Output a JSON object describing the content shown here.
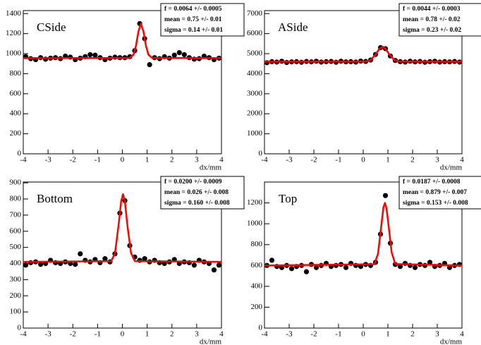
{
  "chart_data": [
    {
      "type": "scatter",
      "title": "CSide",
      "xlabel": "dx/mm",
      "color": "#000000",
      "fit_color": "#ff0000",
      "xlim": [
        -4,
        4
      ],
      "ylim": [
        0,
        1430
      ],
      "xticks": [
        -4,
        -3,
        -2,
        -1,
        0,
        1,
        2,
        3,
        4
      ],
      "yticks": [
        0,
        200,
        400,
        600,
        800,
        1000,
        1200,
        1400
      ],
      "stats": [
        "f =  0.0064 +/- 0.0005",
        "mean =  0.75 +/- 0.01",
        "sigma =  0.14 +/- 0.01"
      ],
      "x": [
        -3.9,
        -3.7,
        -3.5,
        -3.3,
        -3.1,
        -2.9,
        -2.7,
        -2.5,
        -2.3,
        -2.1,
        -1.9,
        -1.7,
        -1.5,
        -1.3,
        -1.1,
        -0.9,
        -0.7,
        -0.5,
        -0.3,
        -0.1,
        0.1,
        0.3,
        0.5,
        0.7,
        0.9,
        1.1,
        1.3,
        1.5,
        1.7,
        1.9,
        2.1,
        2.3,
        2.5,
        2.7,
        2.9,
        3.1,
        3.3,
        3.5,
        3.7,
        3.9
      ],
      "values": [
        970,
        950,
        940,
        960,
        945,
        955,
        960,
        950,
        975,
        965,
        940,
        955,
        970,
        990,
        985,
        960,
        940,
        955,
        965,
        960,
        960,
        970,
        1030,
        1300,
        1150,
        890,
        960,
        950,
        970,
        955,
        985,
        1010,
        990,
        960,
        945,
        950,
        975,
        960,
        940,
        955
      ],
      "fit": {
        "x": [
          -4,
          0.3,
          0.45,
          0.55,
          0.65,
          0.75,
          0.85,
          0.95,
          1.05,
          1.2,
          4
        ],
        "values": [
          955,
          957,
          990,
          1079,
          1222,
          1300,
          1222,
          1079,
          990,
          957,
          955
        ]
      }
    },
    {
      "type": "scatter",
      "title": "ASide",
      "xlabel": "dx/mm",
      "color": "#000000",
      "fit_color": "#ff0000",
      "xlim": [
        -4,
        4
      ],
      "ylim": [
        0,
        7150
      ],
      "xticks": [
        -4,
        -3,
        -2,
        -1,
        0,
        1,
        2,
        3,
        4
      ],
      "yticks": [
        0,
        1000,
        2000,
        3000,
        4000,
        5000,
        6000,
        7000
      ],
      "stats": [
        "f =  0.0044 +/- 0.0003",
        "mean =  0.78 +/- 0.02",
        "sigma =  0.23 +/- 0.02"
      ],
      "x": [
        -3.9,
        -3.7,
        -3.5,
        -3.3,
        -3.1,
        -2.9,
        -2.7,
        -2.5,
        -2.3,
        -2.1,
        -1.9,
        -1.7,
        -1.5,
        -1.3,
        -1.1,
        -0.9,
        -0.7,
        -0.5,
        -0.3,
        -0.1,
        0.1,
        0.3,
        0.5,
        0.7,
        0.9,
        1.1,
        1.3,
        1.5,
        1.7,
        1.9,
        2.1,
        2.3,
        2.5,
        2.7,
        2.9,
        3.1,
        3.3,
        3.5,
        3.7,
        3.9
      ],
      "values": [
        4550,
        4600,
        4580,
        4620,
        4560,
        4590,
        4600,
        4570,
        4610,
        4590,
        4620,
        4580,
        4600,
        4610,
        4570,
        4620,
        4590,
        4600,
        4580,
        4630,
        4610,
        4680,
        4960,
        5300,
        5250,
        4885,
        4660,
        4600,
        4580,
        4620,
        4590,
        4610,
        4570,
        4600,
        4620,
        4580,
        4600,
        4590,
        4610,
        4580
      ],
      "fit": {
        "x": [
          -4,
          0.1,
          0.3,
          0.5,
          0.65,
          0.78,
          0.9,
          1.05,
          1.25,
          1.45,
          4
        ],
        "values": [
          4600,
          4610,
          4680,
          4960,
          5240,
          5350,
          5250,
          4975,
          4690,
          4610,
          4600
        ]
      }
    },
    {
      "type": "scatter",
      "title": "Bottom",
      "xlabel": "dx/mm",
      "color": "#000000",
      "fit_color": "#ff0000",
      "xlim": [
        -4,
        4
      ],
      "ylim": [
        0,
        905
      ],
      "xticks": [
        -4,
        -3,
        -2,
        -1,
        0,
        1,
        2,
        3,
        4
      ],
      "yticks": [
        0,
        100,
        200,
        300,
        400,
        500,
        600,
        700,
        800,
        900
      ],
      "stats": [
        "f =  0.0200 +/- 0.0009",
        "mean =  0.026 +/- 0.008",
        "sigma =  0.160 +/- 0.008"
      ],
      "x": [
        -3.9,
        -3.7,
        -3.5,
        -3.3,
        -3.1,
        -2.9,
        -2.7,
        -2.5,
        -2.3,
        -2.1,
        -1.9,
        -1.7,
        -1.5,
        -1.3,
        -1.1,
        -0.9,
        -0.7,
        -0.5,
        -0.3,
        -0.1,
        0.1,
        0.3,
        0.5,
        0.7,
        0.9,
        1.1,
        1.3,
        1.5,
        1.7,
        1.9,
        2.1,
        2.3,
        2.5,
        2.7,
        2.9,
        3.1,
        3.3,
        3.5,
        3.7,
        3.9
      ],
      "values": [
        390,
        405,
        410,
        395,
        400,
        420,
        405,
        400,
        410,
        400,
        395,
        460,
        420,
        410,
        425,
        405,
        430,
        410,
        460,
        712,
        790,
        511,
        440,
        420,
        430,
        410,
        420,
        405,
        400,
        410,
        425,
        400,
        410,
        405,
        390,
        420,
        410,
        400,
        360,
        390
      ],
      "fit": {
        "x": [
          -4,
          -0.45,
          -0.3,
          -0.15,
          -0.05,
          0.026,
          0.1,
          0.2,
          0.35,
          0.5,
          4
        ],
        "values": [
          410,
          415,
          463,
          641,
          784,
          830,
          788,
          641,
          464,
          415,
          410
        ]
      }
    },
    {
      "type": "scatter",
      "title": "Top",
      "xlabel": "dx/mm",
      "color": "#000000",
      "fit_color": "#ff0000",
      "xlim": [
        -4,
        4
      ],
      "ylim": [
        0,
        1400
      ],
      "xticks": [
        -4,
        -3,
        -2,
        -1,
        0,
        1,
        2,
        3,
        4
      ],
      "yticks": [
        0,
        200,
        400,
        600,
        800,
        1000,
        1200
      ],
      "stats": [
        "f =  0.0187 +/- 0.0008",
        "mean =  0.879 +/- 0.007",
        "sigma =  0.153 +/- 0.008"
      ],
      "x": [
        -3.9,
        -3.7,
        -3.5,
        -3.3,
        -3.1,
        -2.9,
        -2.7,
        -2.5,
        -2.3,
        -2.1,
        -1.9,
        -1.7,
        -1.5,
        -1.3,
        -1.1,
        -0.9,
        -0.7,
        -0.5,
        -0.3,
        -0.1,
        0.1,
        0.3,
        0.5,
        0.7,
        0.9,
        1.1,
        1.3,
        1.5,
        1.7,
        1.9,
        2.1,
        2.3,
        2.5,
        2.7,
        2.9,
        3.1,
        3.3,
        3.5,
        3.7,
        3.9
      ],
      "values": [
        600,
        650,
        590,
        580,
        600,
        570,
        590,
        600,
        540,
        610,
        580,
        600,
        620,
        590,
        600,
        610,
        580,
        620,
        600,
        590,
        610,
        600,
        630,
        900,
        1270,
        814,
        610,
        590,
        620,
        600,
        580,
        610,
        600,
        630,
        590,
        600,
        620,
        580,
        600,
        610
      ],
      "fit": {
        "x": [
          -4,
          0.45,
          0.6,
          0.75,
          0.82,
          0.879,
          0.94,
          1.0,
          1.15,
          1.3,
          4
        ],
        "values": [
          600,
          612,
          714,
          1020,
          1158,
          1200,
          1152,
          1038,
          726,
          614,
          600
        ]
      }
    }
  ]
}
